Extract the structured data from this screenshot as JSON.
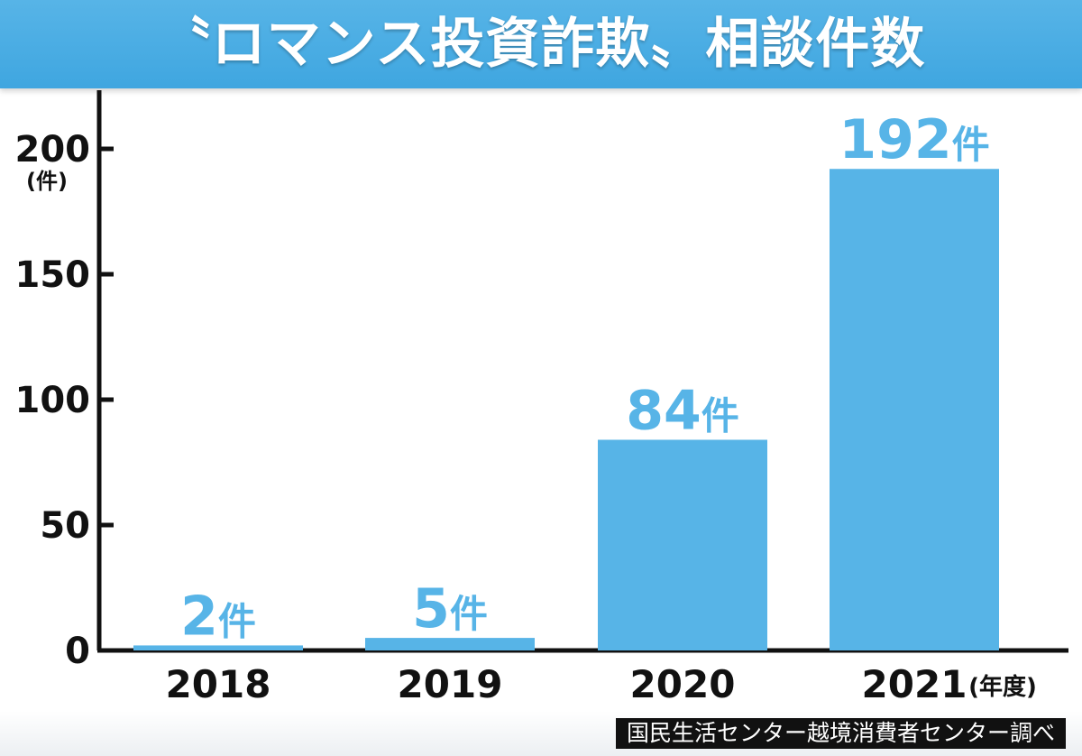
{
  "title": "〝ロマンス投資詐欺〟相談件数",
  "source": "国民生活センター越境消費者センター調べ",
  "colors": {
    "bar": "#57b4e7",
    "title_bg": "#4aaee3",
    "label": "#57b4e7",
    "axis": "#111111"
  },
  "chart_data": {
    "type": "bar",
    "categories": [
      "2018",
      "2019",
      "2020",
      "2021"
    ],
    "values": [
      2,
      5,
      84,
      192
    ],
    "data_labels": [
      "2件",
      "5件",
      "84件",
      "192件"
    ],
    "y_ticks": [
      0,
      50,
      100,
      150,
      200
    ],
    "ylim": [
      0,
      200
    ],
    "ylabel": "(件)",
    "xlabel": "(年度)",
    "grid": false
  }
}
